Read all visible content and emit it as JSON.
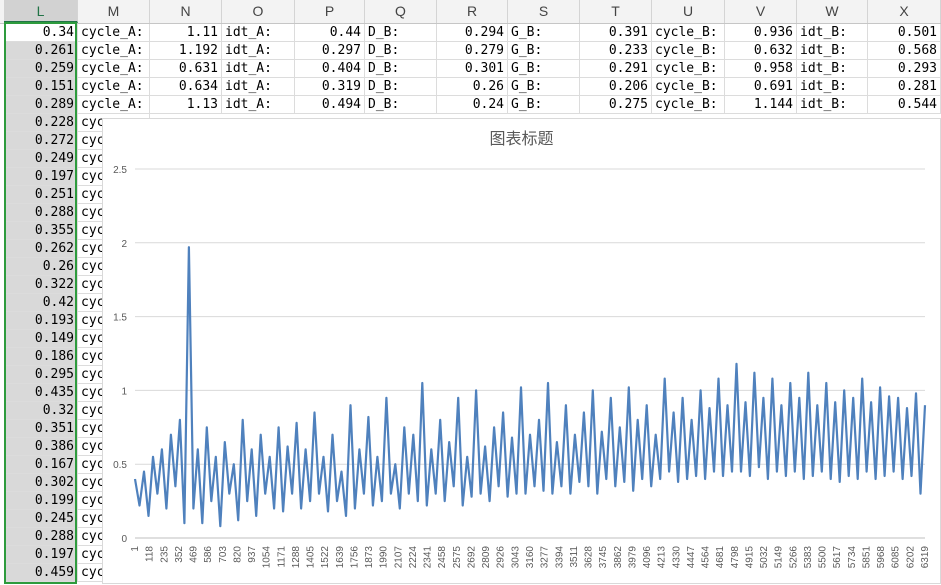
{
  "sheet": {
    "columns": [
      "L",
      "M",
      "N",
      "O",
      "P",
      "Q",
      "R",
      "S",
      "T",
      "U",
      "V",
      "W",
      "X"
    ],
    "selected_column": "L",
    "top_rows": [
      [
        "0.34",
        "cycle_A:",
        "1.11",
        "idt_A:",
        "0.44",
        "D_B:",
        "0.294",
        "G_B:",
        "0.391",
        "cycle_B:",
        "0.936",
        "idt_B:",
        "0.501"
      ],
      [
        "0.261",
        "cycle_A:",
        "1.192",
        "idt_A:",
        "0.297",
        "D_B:",
        "0.279",
        "G_B:",
        "0.233",
        "cycle_B:",
        "0.632",
        "idt_B:",
        "0.568"
      ],
      [
        "0.259",
        "cycle_A:",
        "0.631",
        "idt_A:",
        "0.404",
        "D_B:",
        "0.301",
        "G_B:",
        "0.291",
        "cycle_B:",
        "0.958",
        "idt_B:",
        "0.293"
      ],
      [
        "0.151",
        "cycle_A:",
        "0.634",
        "idt_A:",
        "0.319",
        "D_B:",
        "0.26",
        "G_B:",
        "0.206",
        "cycle_B:",
        "0.691",
        "idt_B:",
        "0.281"
      ],
      [
        "0.289",
        "cycle_A:",
        "1.13",
        "idt_A:",
        "0.494",
        "D_B:",
        "0.24",
        "G_B:",
        "0.275",
        "cycle_B:",
        "1.144",
        "idt_B:",
        "0.544"
      ]
    ],
    "lower_L_values": [
      "0.228",
      "0.272",
      "0.249",
      "0.197",
      "0.251",
      "0.288",
      "0.355",
      "0.262",
      "0.26",
      "0.322",
      "0.42",
      "0.193",
      "0.149",
      "0.186",
      "0.295",
      "0.435",
      "0.32",
      "0.351",
      "0.386",
      "0.167",
      "0.302",
      "0.199",
      "0.245",
      "0.288",
      "0.197",
      "0.459"
    ],
    "lower_M_value": "cyc"
  },
  "chart_data": {
    "type": "line",
    "title": "图表标题",
    "ylim": [
      0,
      2.5
    ],
    "yticks": [
      "0",
      "0.5",
      "1",
      "1.5",
      "2",
      "2.5"
    ],
    "x_tick_labels": [
      "1",
      "118",
      "235",
      "352",
      "469",
      "586",
      "703",
      "820",
      "937",
      "1054",
      "1171",
      "1288",
      "1405",
      "1522",
      "1639",
      "1756",
      "1873",
      "1990",
      "2107",
      "2224",
      "2341",
      "2458",
      "2575",
      "2692",
      "2809",
      "2926",
      "3043",
      "3160",
      "3277",
      "3394",
      "3511",
      "3628",
      "3745",
      "3862",
      "3979",
      "4096",
      "4213",
      "4330",
      "4447",
      "4564",
      "4681",
      "4798",
      "4915",
      "5032",
      "5149",
      "5266",
      "5383",
      "5500",
      "5617",
      "5734",
      "5851",
      "5968",
      "6085",
      "6202",
      "6319"
    ],
    "x_count": 6400,
    "grid": true,
    "series_color": "#4f81bd",
    "series": [
      {
        "values": [
          0.4,
          0.22,
          0.45,
          0.15,
          0.55,
          0.3,
          0.6,
          0.2,
          0.7,
          0.35,
          0.8,
          0.1,
          1.97,
          0.2,
          0.6,
          0.1,
          0.75,
          0.25,
          0.55,
          0.08,
          0.65,
          0.3,
          0.5,
          0.12,
          0.8,
          0.25,
          0.6,
          0.15,
          0.7,
          0.3,
          0.55,
          0.2,
          0.75,
          0.18,
          0.62,
          0.3,
          0.78,
          0.2,
          0.6,
          0.25,
          0.85,
          0.3,
          0.55,
          0.18,
          0.7,
          0.25,
          0.45,
          0.15,
          0.9,
          0.2,
          0.6,
          0.3,
          0.82,
          0.22,
          0.55,
          0.25,
          0.95,
          0.3,
          0.5,
          0.2,
          0.75,
          0.3,
          0.7,
          0.25,
          1.05,
          0.22,
          0.6,
          0.3,
          0.8,
          0.25,
          0.65,
          0.35,
          0.95,
          0.22,
          0.55,
          0.28,
          1.0,
          0.3,
          0.62,
          0.25,
          0.75,
          0.35,
          0.85,
          0.28,
          0.68,
          0.3,
          1.02,
          0.3,
          0.7,
          0.35,
          0.8,
          0.32,
          1.05,
          0.3,
          0.65,
          0.35,
          0.9,
          0.3,
          0.7,
          0.38,
          0.85,
          0.35,
          1.0,
          0.3,
          0.72,
          0.4,
          0.95,
          0.35,
          0.75,
          0.38,
          1.02,
          0.32,
          0.8,
          0.4,
          0.9,
          0.35,
          0.7,
          0.4,
          1.08,
          0.45,
          0.85,
          0.38,
          0.95,
          0.4,
          0.8,
          0.42,
          1.0,
          0.4,
          0.88,
          0.45,
          1.08,
          0.42,
          0.9,
          0.45,
          1.18,
          0.45,
          0.92,
          0.42,
          1.12,
          0.48,
          0.95,
          0.4,
          1.08,
          0.45,
          0.9,
          0.42,
          1.05,
          0.45,
          0.95,
          0.4,
          1.12,
          0.42,
          0.9,
          0.45,
          1.05,
          0.4,
          0.92,
          0.38,
          1.0,
          0.42,
          0.95,
          0.4,
          1.08,
          0.45,
          0.92,
          0.4,
          1.02,
          0.42,
          0.96,
          0.45,
          0.95,
          0.4,
          0.88,
          0.42,
          0.98,
          0.3,
          0.9
        ]
      }
    ]
  }
}
